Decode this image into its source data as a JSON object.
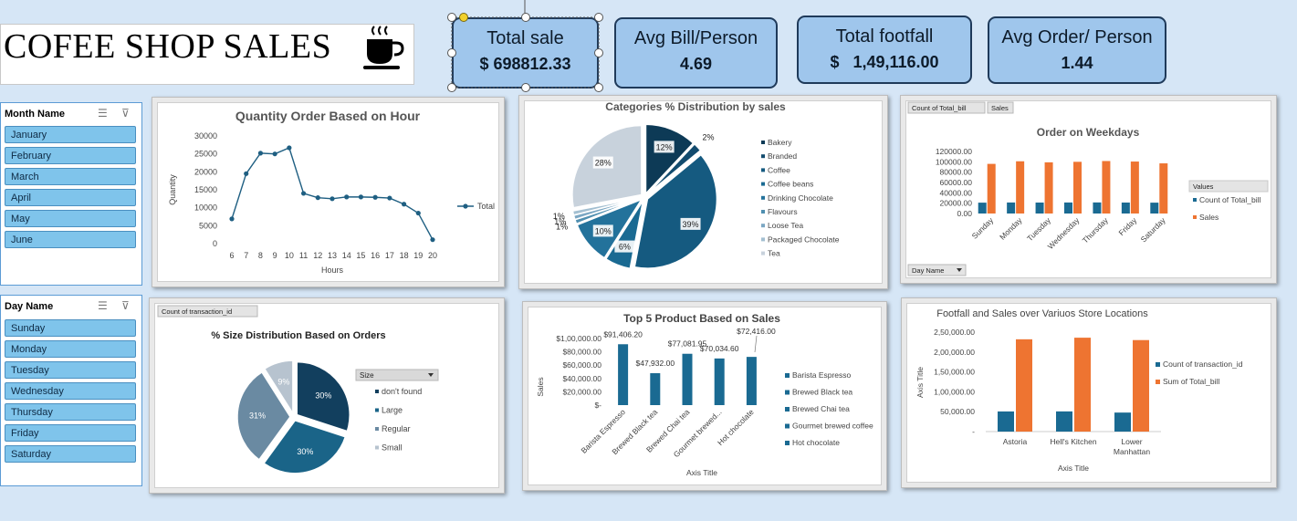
{
  "header": {
    "title": "COFEE SHOP SALES",
    "cup_icon": "coffee-cup-icon"
  },
  "kpis": [
    {
      "label": "Total sale",
      "value": "$ 698812.33"
    },
    {
      "label": "Avg Bill/Person",
      "value": "4.69"
    },
    {
      "label": "Total footfall",
      "value": "$   1,49,116.00"
    },
    {
      "label": "Avg Order/ Person",
      "value": "1.44"
    }
  ],
  "slicers": {
    "month": {
      "title": "Month Name",
      "items": [
        "January",
        "February",
        "March",
        "April",
        "May",
        "June"
      ]
    },
    "day": {
      "title": "Day Name",
      "items": [
        "Sunday",
        "Monday",
        "Tuesday",
        "Wednesday",
        "Thursday",
        "Friday",
        "Saturday"
      ]
    }
  },
  "chart_data": [
    {
      "id": "hour",
      "type": "line",
      "title": "Quantity Order Based on Hour",
      "xlabel": "Hours",
      "ylabel": "Quantity",
      "x": [
        6,
        7,
        8,
        9,
        10,
        11,
        12,
        13,
        14,
        15,
        16,
        17,
        18,
        19,
        20
      ],
      "series": [
        {
          "name": "Total",
          "values": [
            6900,
            19500,
            25200,
            25000,
            26700,
            14000,
            12800,
            12500,
            13000,
            13000,
            12900,
            12700,
            11000,
            8500,
            1100
          ]
        }
      ],
      "ylim": [
        0,
        30000
      ],
      "yticks": [
        "0",
        "5000",
        "10000",
        "15000",
        "20000",
        "25000",
        "30000"
      ],
      "legend": "right",
      "color": "#1f5f82"
    },
    {
      "id": "categories",
      "type": "pie",
      "title": "Categories % Distribution by sales",
      "categories": [
        "Bakery",
        "Branded",
        "Coffee",
        "Coffee beans",
        "Drinking Chocolate",
        "Flavours",
        "Loose Tea",
        "Packaged Chocolate",
        "Tea"
      ],
      "values": [
        12,
        2,
        39,
        6,
        10,
        1,
        1,
        1,
        28
      ],
      "labels": [
        "12%",
        "2%",
        "39%",
        "6%",
        "10%",
        "1%",
        "1%",
        "1%",
        "28%"
      ],
      "colors": [
        "#0d3a56",
        "#124b6e",
        "#155a80",
        "#1a6a92",
        "#23729b",
        "#4f8fb0",
        "#7ba7c3",
        "#a3bfd1",
        "#c8d2dc"
      ],
      "legend": "right"
    },
    {
      "id": "weekdays",
      "type": "bar",
      "title": "Order on Weekdays",
      "categories": [
        "Sunday",
        "Monday",
        "Tuesday",
        "Wednesday",
        "Thursday",
        "Friday",
        "Saturday"
      ],
      "series": [
        {
          "name": "Count of Total_bill",
          "values": [
            21000,
            21300,
            21200,
            21300,
            21400,
            21200,
            21000
          ],
          "color": "#1a6a92"
        },
        {
          "name": "Sales",
          "values": [
            96000,
            101000,
            99000,
            100000,
            101500,
            100500,
            97000
          ],
          "color": "#ee7431"
        }
      ],
      "ylim": [
        0,
        120000
      ],
      "yticks": [
        "0.00",
        "20000.00",
        "40000.00",
        "60000.00",
        "80000.00",
        "100000.00",
        "120000.00"
      ],
      "legend_title": "Values",
      "legend": "right",
      "chips": [
        "Count of Total_bill",
        "Sales"
      ],
      "filter_chip": "Day Name"
    },
    {
      "id": "size",
      "type": "pie",
      "title": "% Size Distribution Based on  Orders",
      "categories": [
        "don't found",
        "Large",
        "Regular",
        "Small"
      ],
      "values": [
        30,
        30,
        31,
        9
      ],
      "labels": [
        "30%",
        "30%",
        "31%",
        "9%"
      ],
      "colors": [
        "#123f5e",
        "#1a6488",
        "#6a8aa2",
        "#b7c3cf"
      ],
      "legend_title": "Size",
      "legend": "right",
      "chip": "Count of transaction_id"
    },
    {
      "id": "top5",
      "type": "bar",
      "title": "Top 5 Product Based on Sales",
      "xlabel": "Axis Title",
      "ylabel": "Sales",
      "categories": [
        "Barista Espresso",
        "Brewed Black tea",
        "Brewed Chai tea",
        "Gourmet brewed coffee",
        "Hot chocolate"
      ],
      "xtick_labels": [
        "Barista Espresso",
        "Brewed Black tea",
        "Brewed Chai tea",
        "Gourmet brewed...",
        "Hot chocolate"
      ],
      "values": [
        91406.2,
        47932,
        77081.95,
        70034.6,
        72416
      ],
      "data_labels": [
        "$91,406.20",
        "$47,932.00",
        "$77,081.95",
        "$70,034.60",
        "$72,416.00"
      ],
      "ylim": [
        0,
        100000
      ],
      "yticks": [
        "$-",
        "$20,000.00",
        "$40,000.00",
        "$60,000.00",
        "$80,000.00",
        "$1,00,000.00"
      ],
      "color": "#1a6a92",
      "legend": "right"
    },
    {
      "id": "locations",
      "type": "bar",
      "title": "Footfall and Sales  over Variuos Store Locations",
      "xlabel": "Axis Title",
      "ylabel": "Axis Title",
      "categories": [
        "Astoria",
        "Hell's Kitchen",
        "Lower\nManhattan"
      ],
      "series": [
        {
          "name": "Count of transaction_id",
          "values": [
            50600,
            50700,
            47800
          ],
          "color": "#1a6a92"
        },
        {
          "name": "Sum of Total_bill",
          "values": [
            232000,
            236000,
            230000
          ],
          "color": "#ee7431"
        }
      ],
      "ylim": [
        0,
        250000
      ],
      "yticks": [
        "-",
        "50,000.00",
        "1,00,000.00",
        "1,50,000.00",
        "2,00,000.00",
        "2,50,000.00"
      ],
      "legend": "right"
    }
  ]
}
